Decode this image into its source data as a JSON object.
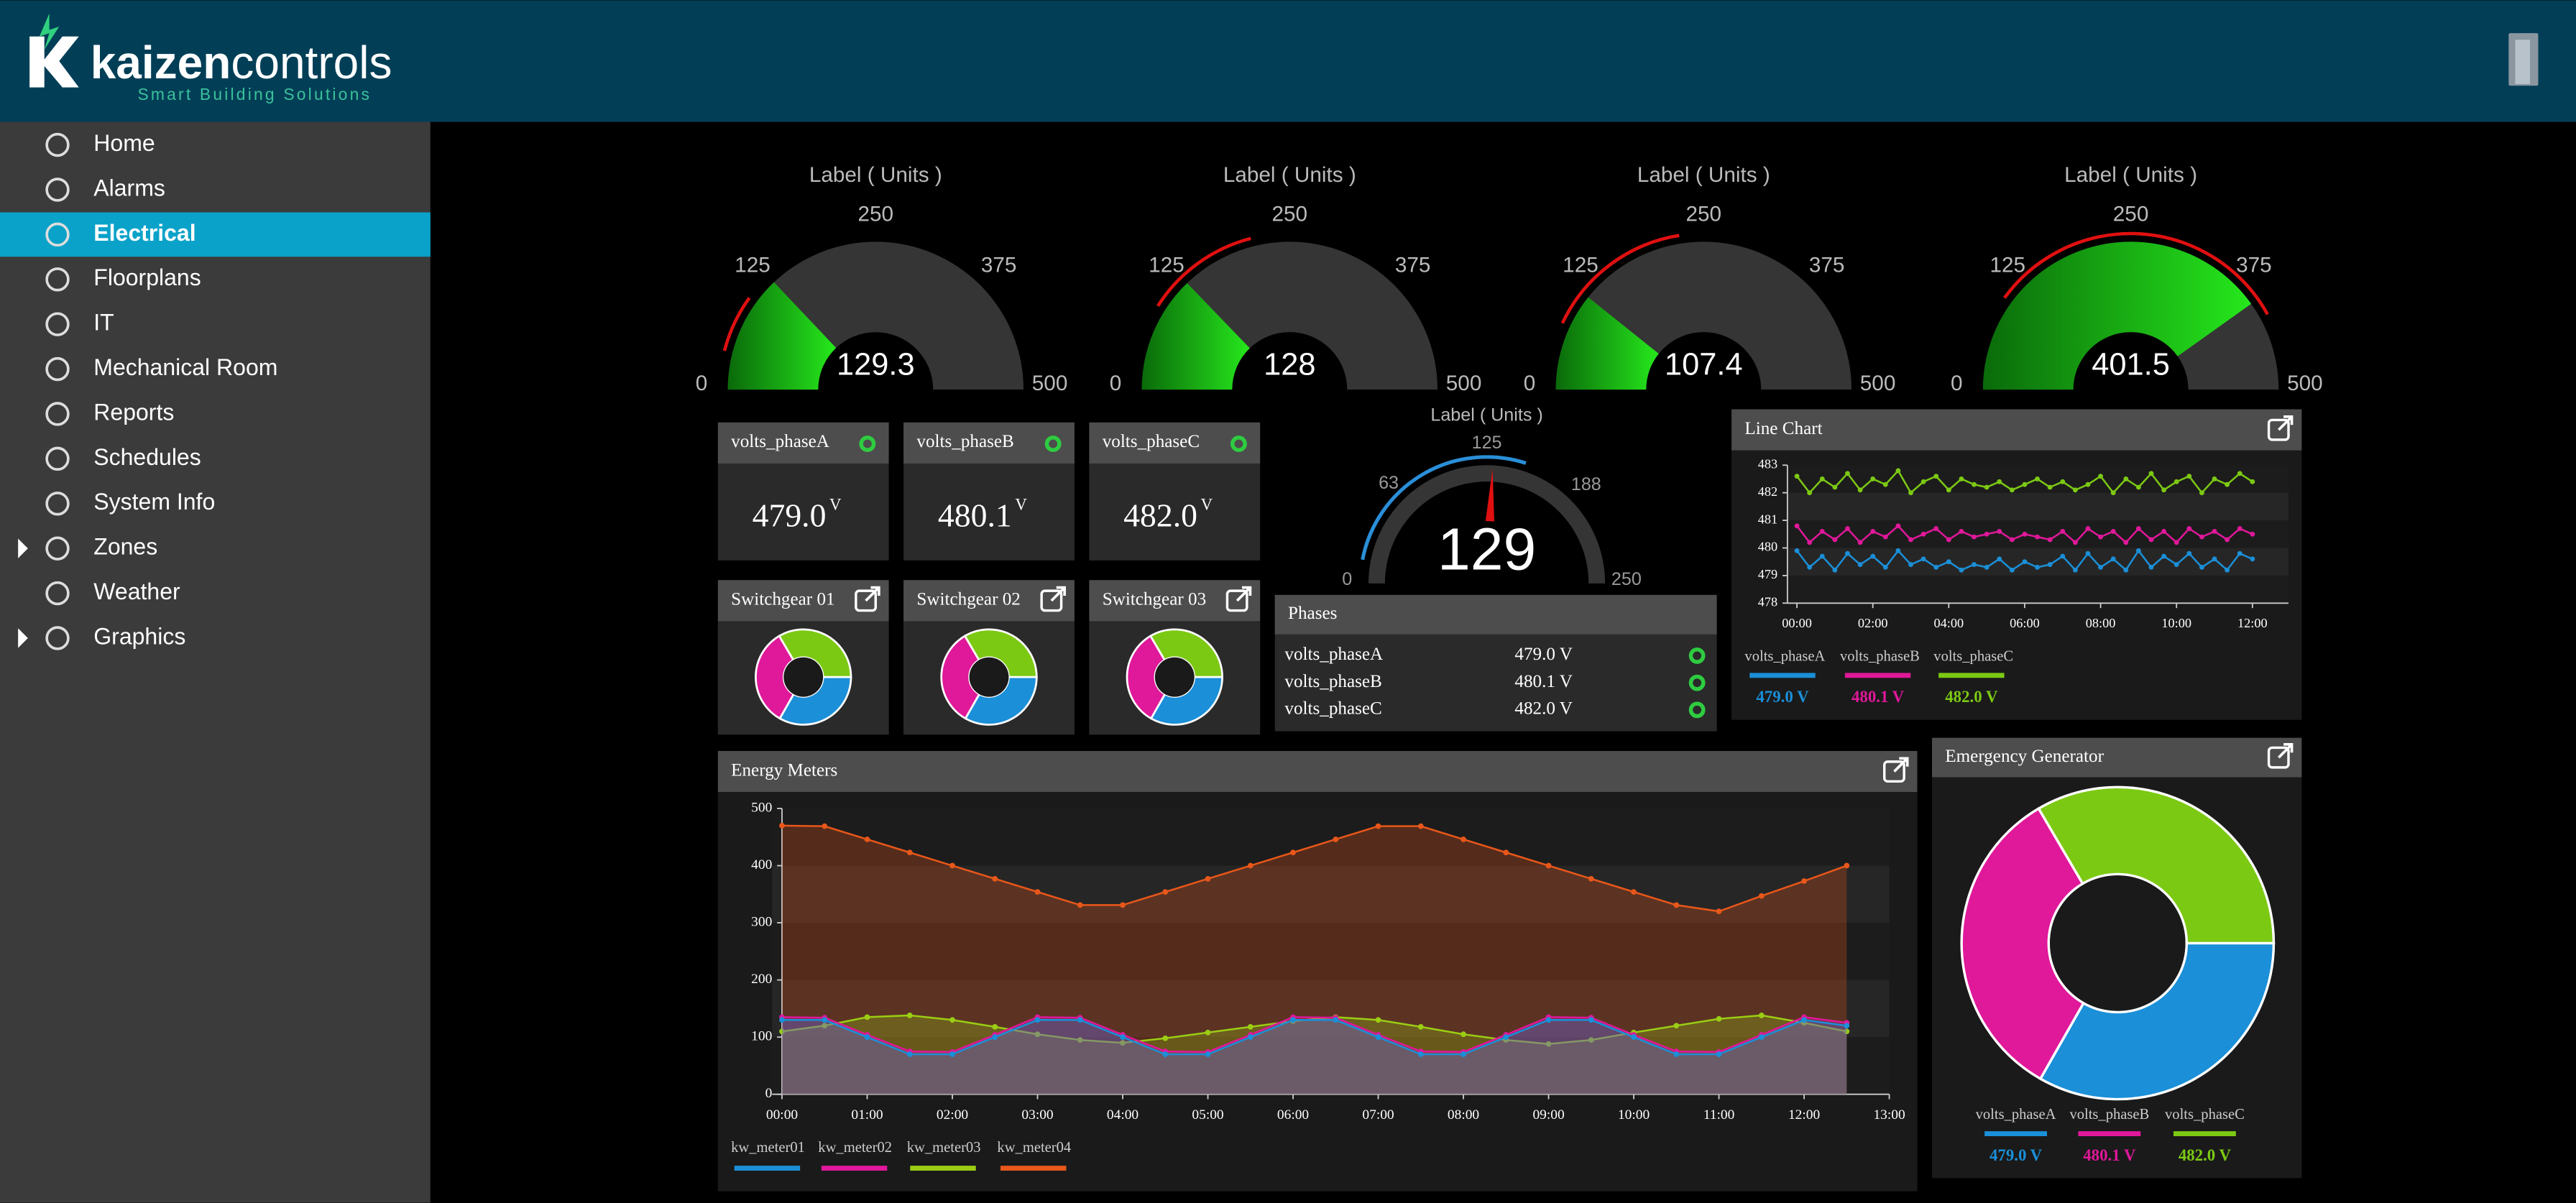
{
  "header": {
    "brand_a": "kaizen",
    "brand_b": "controls",
    "tagline": "Smart Building Solutions"
  },
  "nav": {
    "items": [
      {
        "label": "Home"
      },
      {
        "label": "Alarms"
      },
      {
        "label": "Electrical",
        "selected": true
      },
      {
        "label": "Floorplans"
      },
      {
        "label": "IT"
      },
      {
        "label": "Mechanical Room"
      },
      {
        "label": "Reports"
      },
      {
        "label": "Schedules"
      },
      {
        "label": "System Info"
      },
      {
        "label": "Zones",
        "expandable": true
      },
      {
        "label": "Weather"
      },
      {
        "label": "Graphics",
        "expandable": true
      }
    ]
  },
  "gauges": [
    {
      "label": "Label ( Units )",
      "min": 0,
      "max": 500,
      "ticks": [
        0,
        125,
        250,
        375,
        500
      ],
      "value": 129.3,
      "alarm": [
        40,
        100
      ]
    },
    {
      "label": "Label ( Units )",
      "min": 0,
      "max": 500,
      "ticks": [
        0,
        125,
        250,
        375,
        500
      ],
      "value": 128,
      "alarm": [
        90,
        210
      ]
    },
    {
      "label": "Label ( Units )",
      "min": 0,
      "max": 500,
      "ticks": [
        0,
        125,
        250,
        375,
        500
      ],
      "value": 107.4,
      "alarm": [
        70,
        225
      ]
    },
    {
      "label": "Label ( Units )",
      "min": 0,
      "max": 500,
      "ticks": [
        0,
        125,
        250,
        375,
        500
      ],
      "value": 401.5,
      "alarm": [
        100,
        420
      ]
    }
  ],
  "dial": {
    "label": "Label ( Units )",
    "min": 0,
    "max": 250,
    "ticks": [
      0,
      63,
      125,
      188,
      250
    ],
    "value": 129,
    "range": [
      15,
      150
    ]
  },
  "status_cards": [
    {
      "title": "volts_phaseA",
      "value": "479.0",
      "unit": "V"
    },
    {
      "title": "volts_phaseB",
      "value": "480.1",
      "unit": "V"
    },
    {
      "title": "volts_phaseC",
      "value": "482.0",
      "unit": "V"
    }
  ],
  "switchgear": [
    {
      "title": "Switchgear 01",
      "values": [
        479.0,
        480.1,
        482.0
      ]
    },
    {
      "title": "Switchgear 02",
      "values": [
        479.0,
        480.1,
        482.0
      ]
    },
    {
      "title": "Switchgear 03",
      "values": [
        479.0,
        480.1,
        482.0
      ]
    }
  ],
  "phases": {
    "title": "Phases",
    "rows": [
      {
        "name": "volts_phaseA",
        "value": "479.0 V"
      },
      {
        "name": "volts_phaseB",
        "value": "480.1 V"
      },
      {
        "name": "volts_phaseC",
        "value": "482.0 V"
      }
    ]
  },
  "line_chart": {
    "type": "line",
    "title": "Line Chart",
    "x": [
      0,
      20,
      40,
      60,
      80,
      100,
      120,
      140,
      160,
      180,
      200,
      220,
      240,
      260,
      280,
      300,
      320,
      340,
      360,
      380,
      400,
      420,
      440,
      460,
      480,
      500,
      520,
      540,
      560,
      580,
      600,
      620,
      640,
      660,
      680,
      700,
      720
    ],
    "xlim": [
      -15,
      777
    ],
    "xticks": [
      {
        "value": 0,
        "label": "00:00"
      },
      {
        "value": 120,
        "label": "02:00"
      },
      {
        "value": 240,
        "label": "04:00"
      },
      {
        "value": 360,
        "label": "06:00"
      },
      {
        "value": 480,
        "label": "08:00"
      },
      {
        "value": 600,
        "label": "10:00"
      },
      {
        "value": 720,
        "label": "12:00"
      }
    ],
    "ylim": [
      478,
      483
    ],
    "yticks": [
      478,
      479,
      480,
      481,
      482,
      483
    ],
    "series": [
      {
        "name": "volts_phaseA",
        "color": "#1b8fd8",
        "value_label": "479.0 V",
        "values": [
          479.9,
          479.3,
          479.7,
          479.2,
          479.8,
          479.4,
          479.7,
          479.3,
          479.9,
          479.4,
          479.6,
          479.3,
          479.5,
          479.2,
          479.4,
          479.3,
          479.6,
          479.2,
          479.5,
          479.3,
          479.4,
          479.7,
          479.2,
          479.8,
          479.3,
          479.6,
          479.2,
          479.9,
          479.3,
          479.7,
          479.4,
          479.8,
          479.3,
          479.6,
          479.2,
          479.8,
          479.6
        ]
      },
      {
        "name": "volts_phaseB",
        "color": "#e0189a",
        "value_label": "480.1 V",
        "values": [
          480.8,
          480.2,
          480.6,
          480.3,
          480.7,
          480.2,
          480.6,
          480.4,
          480.8,
          480.3,
          480.5,
          480.7,
          480.3,
          480.6,
          480.4,
          480.5,
          480.6,
          480.3,
          480.5,
          480.4,
          480.3,
          480.6,
          480.2,
          480.7,
          480.4,
          480.6,
          480.2,
          480.7,
          480.3,
          480.6,
          480.2,
          480.7,
          480.4,
          480.6,
          480.3,
          480.7,
          480.5
        ]
      },
      {
        "name": "volts_phaseC",
        "color": "#7cc914",
        "value_label": "482.0 V",
        "values": [
          482.6,
          482.0,
          482.5,
          482.2,
          482.7,
          482.1,
          482.5,
          482.3,
          482.8,
          482.0,
          482.4,
          482.6,
          482.1,
          482.5,
          482.3,
          482.2,
          482.4,
          482.1,
          482.3,
          482.5,
          482.2,
          482.4,
          482.1,
          482.3,
          482.6,
          482.0,
          482.5,
          482.2,
          482.7,
          482.1,
          482.4,
          482.6,
          482.0,
          482.5,
          482.3,
          482.7,
          482.4
        ]
      }
    ]
  },
  "energy_meters": {
    "type": "line",
    "title": "Energy Meters",
    "x": [
      0,
      30,
      60,
      90,
      120,
      150,
      180,
      210,
      240,
      270,
      300,
      330,
      360,
      390,
      420,
      450,
      480,
      510,
      540,
      570,
      600,
      630,
      660,
      690,
      720,
      750
    ],
    "xlim": [
      0,
      780
    ],
    "xticks": [
      {
        "value": 0,
        "label": "00:00"
      },
      {
        "value": 60,
        "label": "01:00"
      },
      {
        "value": 120,
        "label": "02:00"
      },
      {
        "value": 180,
        "label": "03:00"
      },
      {
        "value": 240,
        "label": "04:00"
      },
      {
        "value": 300,
        "label": "05:00"
      },
      {
        "value": 360,
        "label": "06:00"
      },
      {
        "value": 420,
        "label": "07:00"
      },
      {
        "value": 480,
        "label": "08:00"
      },
      {
        "value": 540,
        "label": "09:00"
      },
      {
        "value": 600,
        "label": "10:00"
      },
      {
        "value": 660,
        "label": "11:00"
      },
      {
        "value": 720,
        "label": "12:00"
      },
      {
        "value": 780,
        "label": "13:00"
      }
    ],
    "ylim": [
      0,
      500
    ],
    "yticks": [
      0,
      100,
      200,
      300,
      400,
      500
    ],
    "series": [
      {
        "name": "kw_meter01",
        "color": "#1b8fd8",
        "values": [
          130,
          130,
          100,
          70,
          70,
          100,
          130,
          130,
          100,
          70,
          70,
          100,
          130,
          130,
          100,
          70,
          70,
          100,
          130,
          130,
          100,
          70,
          70,
          100,
          130,
          120
        ]
      },
      {
        "name": "kw_meter02",
        "color": "#e0189a",
        "values": [
          135,
          134,
          104,
          75,
          74,
          104,
          135,
          134,
          104,
          75,
          74,
          104,
          135,
          134,
          104,
          75,
          74,
          104,
          135,
          134,
          104,
          75,
          74,
          104,
          135,
          125
        ]
      },
      {
        "name": "kw_meter03",
        "color": "#9acd14",
        "values": [
          110,
          120,
          135,
          138,
          130,
          118,
          105,
          95,
          90,
          98,
          108,
          118,
          128,
          135,
          130,
          118,
          105,
          95,
          88,
          95,
          108,
          120,
          132,
          138,
          125,
          110
        ]
      },
      {
        "name": "kw_meter04",
        "color": "#e8571a",
        "values": [
          470,
          469,
          446,
          423,
          400,
          377,
          354,
          331,
          331,
          354,
          377,
          400,
          423,
          446,
          469,
          469,
          446,
          423,
          400,
          377,
          354,
          331,
          320,
          347,
          373,
          400
        ]
      }
    ]
  },
  "generator": {
    "title": "Emergency Generator",
    "series": [
      {
        "name": "volts_phaseA",
        "color": "#1b8fd8",
        "value": 479.0,
        "value_label": "479.0 V"
      },
      {
        "name": "volts_phaseB",
        "color": "#e0189a",
        "value": 480.1,
        "value_label": "480.1 V"
      },
      {
        "name": "volts_phaseC",
        "color": "#7cc914",
        "value": 482.0,
        "value_label": "482.0 V"
      }
    ]
  }
}
